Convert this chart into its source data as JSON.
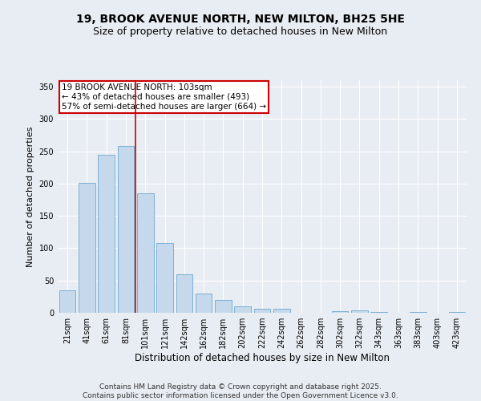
{
  "title_line1": "19, BROOK AVENUE NORTH, NEW MILTON, BH25 5HE",
  "title_line2": "Size of property relative to detached houses in New Milton",
  "xlabel": "Distribution of detached houses by size in New Milton",
  "ylabel": "Number of detached properties",
  "bar_color": "#c6d9ec",
  "bar_edge_color": "#7aafd4",
  "vline_color": "#cc0000",
  "vline_x_index": 4,
  "categories": [
    "21sqm",
    "41sqm",
    "61sqm",
    "81sqm",
    "101sqm",
    "121sqm",
    "142sqm",
    "162sqm",
    "182sqm",
    "202sqm",
    "222sqm",
    "242sqm",
    "262sqm",
    "282sqm",
    "302sqm",
    "322sqm",
    "343sqm",
    "363sqm",
    "383sqm",
    "403sqm",
    "423sqm"
  ],
  "values": [
    35,
    201,
    245,
    258,
    185,
    108,
    59,
    30,
    20,
    10,
    6,
    6,
    0,
    0,
    3,
    4,
    1,
    0,
    1,
    0,
    1
  ],
  "ylim": [
    0,
    360
  ],
  "yticks": [
    0,
    50,
    100,
    150,
    200,
    250,
    300,
    350
  ],
  "annotation_text": "19 BROOK AVENUE NORTH: 103sqm\n← 43% of detached houses are smaller (493)\n57% of semi-detached houses are larger (664) →",
  "annotation_box_color": "white",
  "annotation_box_edge": "#cc0000",
  "background_color": "#e8edf3",
  "plot_bg_color": "#e8edf3",
  "footer_text": "Contains HM Land Registry data © Crown copyright and database right 2025.\nContains public sector information licensed under the Open Government Licence v3.0.",
  "title_fontsize": 10,
  "subtitle_fontsize": 9,
  "tick_fontsize": 7,
  "ylabel_fontsize": 8,
  "xlabel_fontsize": 8.5,
  "footer_fontsize": 6.5,
  "annotation_fontsize": 7.5
}
